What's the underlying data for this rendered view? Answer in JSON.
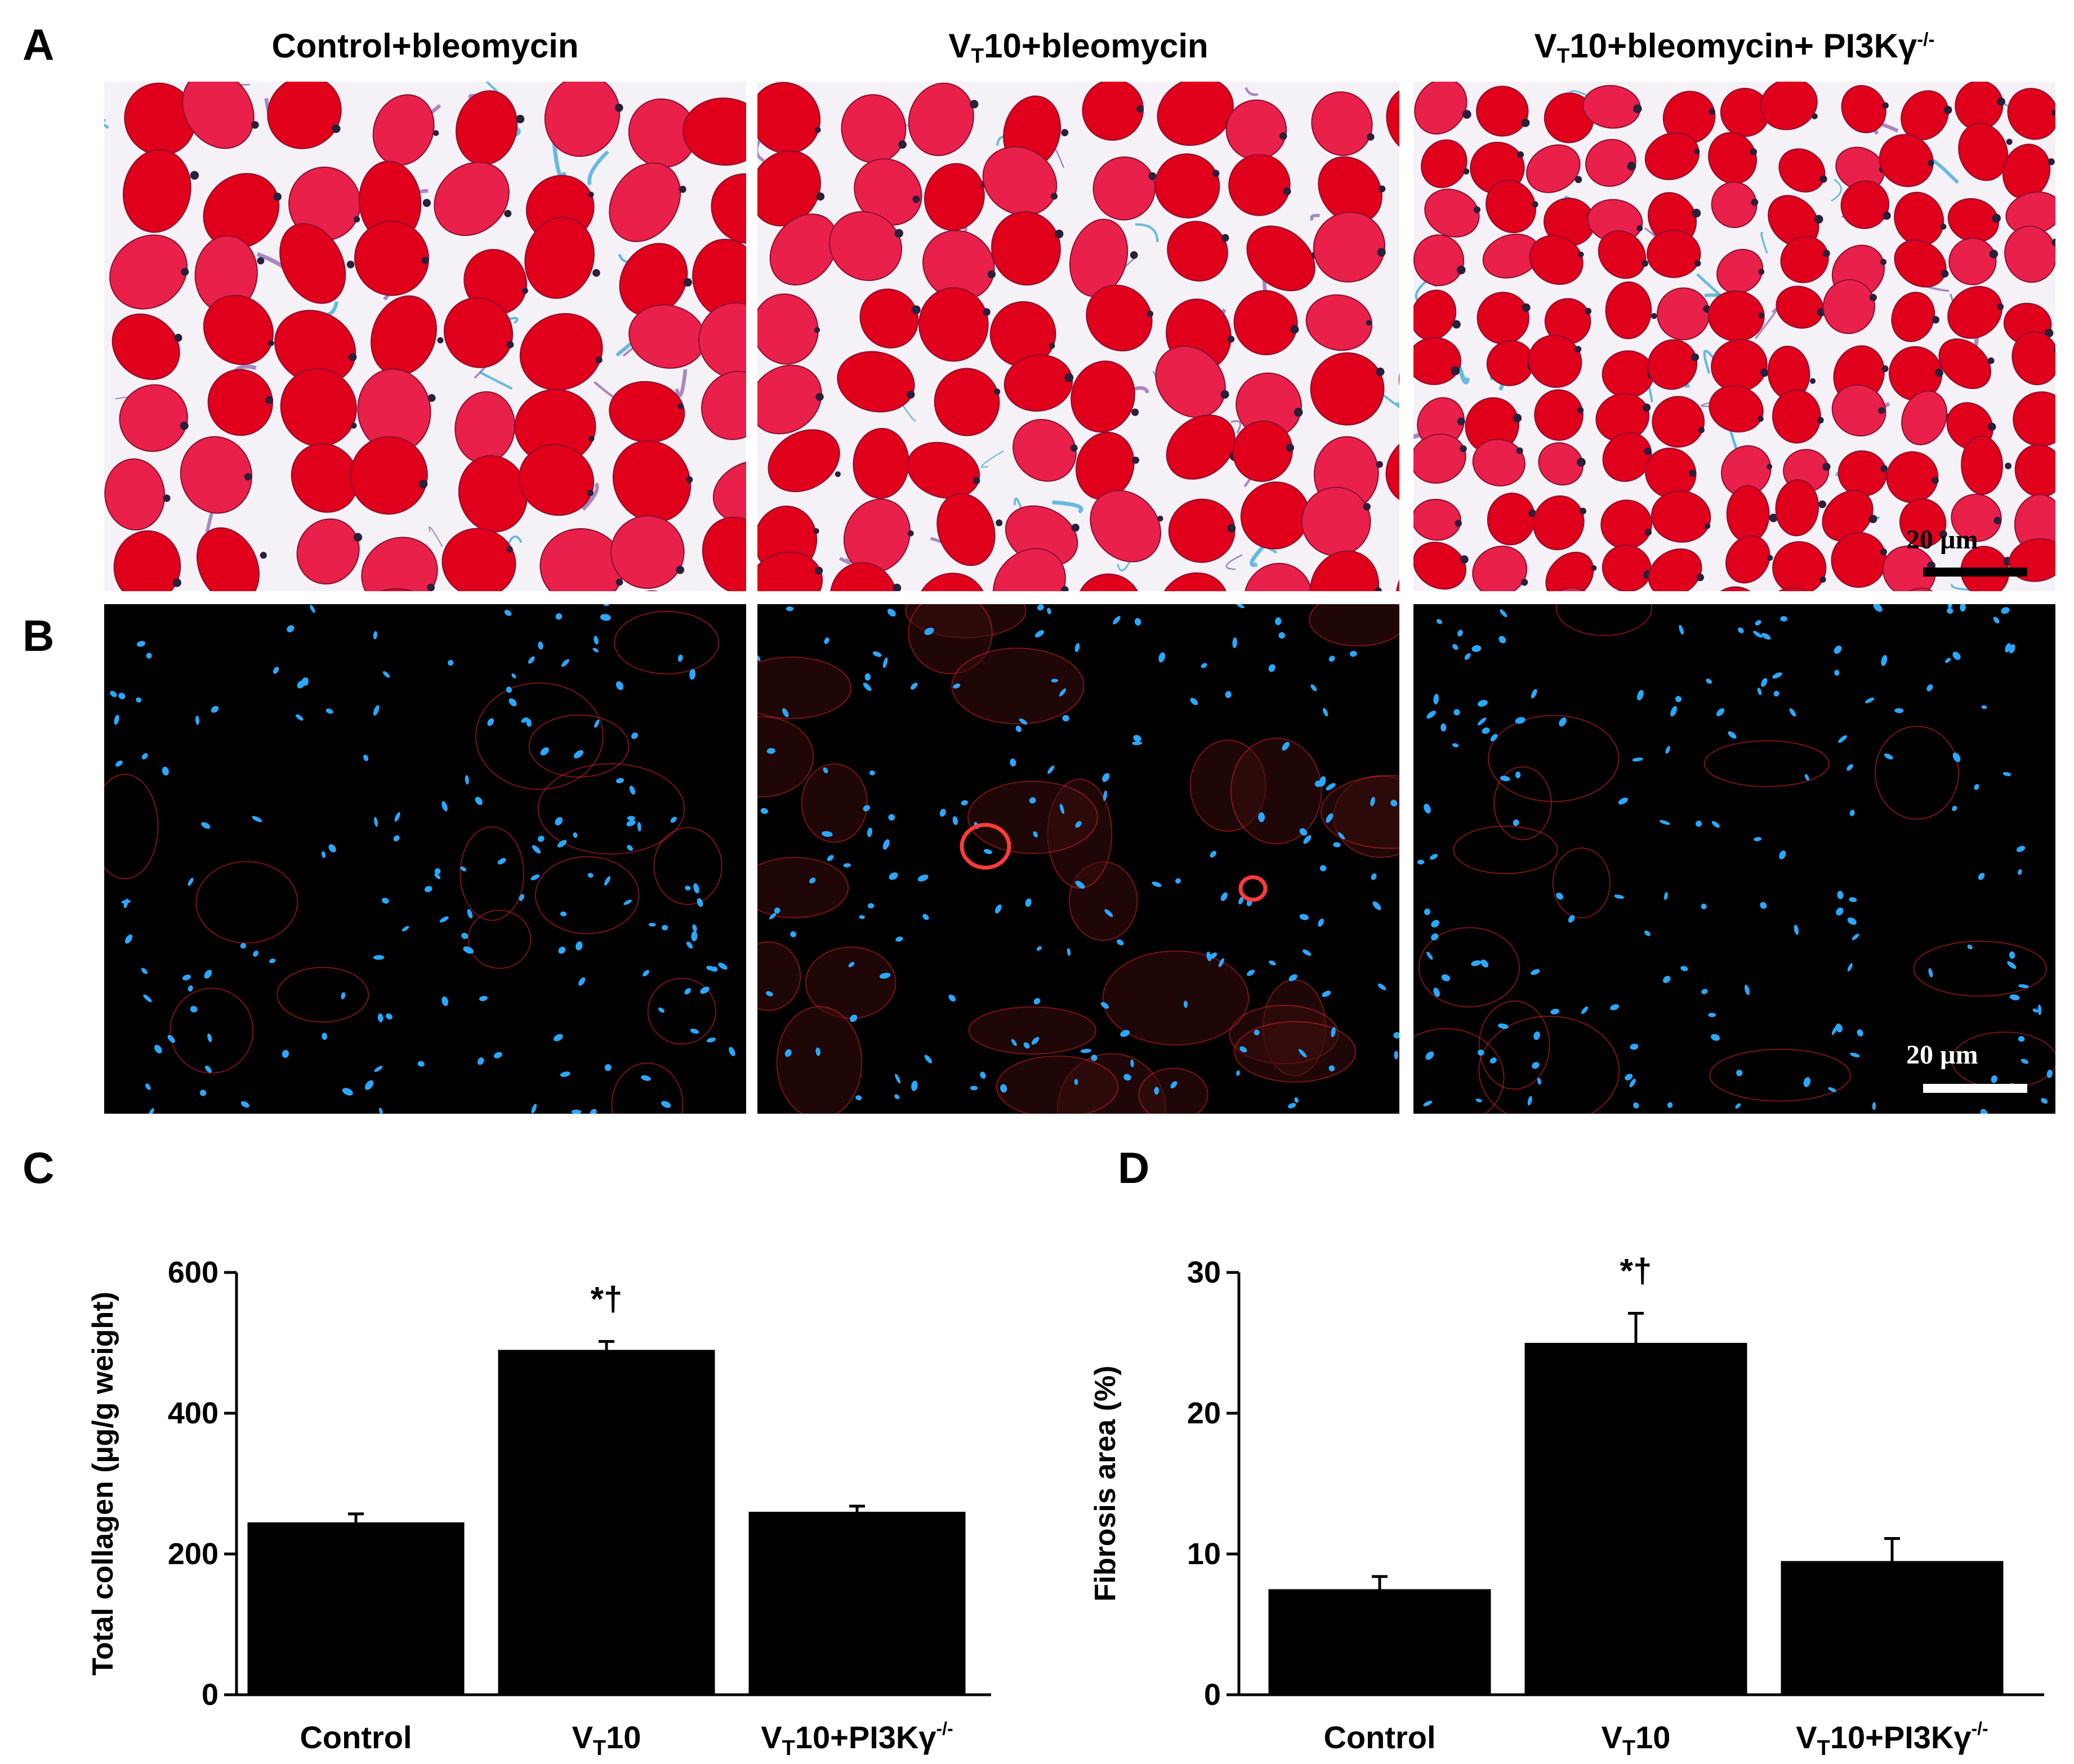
{
  "panels": {
    "A": "A",
    "B": "B",
    "C": "C",
    "D": "D"
  },
  "columns": [
    {
      "base": "Control+bleomycin",
      "sub": "",
      "rest": "",
      "sup": ""
    },
    {
      "base": "V",
      "sub": "T",
      "rest": "10+bleomycin",
      "sup": ""
    },
    {
      "base": "V",
      "sub": "T",
      "rest": "10+bleomycin+ PI3Kγ",
      "sup": "-/-"
    }
  ],
  "scale_bars": {
    "A": "20 µm",
    "B": "20 µm"
  },
  "colors": {
    "trichrome_muscle": "#e0001b",
    "trichrome_collagen": "#2aa3d6",
    "fluor_background": "#000000",
    "fluor_nuclei": "#2aa8ff",
    "fluor_stain": "#e0222a",
    "bars": "#000000"
  },
  "chart_data": [
    {
      "type": "bar",
      "panel": "C",
      "ylabel": "Total collagen (µg/g weight)",
      "ylim": [
        0,
        600
      ],
      "yticks": [
        "0",
        "200",
        "400",
        "600"
      ],
      "categories": [
        {
          "base": "Control",
          "sub": "",
          "rest": "",
          "sup": ""
        },
        {
          "base": "V",
          "sub": "T",
          "rest": "10",
          "sup": ""
        },
        {
          "base": "V",
          "sub": "T",
          "rest": "10+PI3Kγ",
          "sup": "-/-"
        }
      ],
      "values": [
        245,
        490,
        260
      ],
      "errors": [
        12,
        12,
        8
      ],
      "annotations": [
        "",
        "*†",
        ""
      ]
    },
    {
      "type": "bar",
      "panel": "D",
      "ylabel": "Fibrosis area (%)",
      "ylim": [
        0,
        30
      ],
      "yticks": [
        "0",
        "10",
        "20",
        "30"
      ],
      "categories": [
        {
          "base": "Control",
          "sub": "",
          "rest": "",
          "sup": ""
        },
        {
          "base": "V",
          "sub": "T",
          "rest": "10",
          "sup": ""
        },
        {
          "base": "V",
          "sub": "T",
          "rest": "10+PI3Kγ",
          "sup": "-/-"
        }
      ],
      "values": [
        7.5,
        25,
        9.5
      ],
      "errors": [
        0.9,
        2.1,
        1.6
      ],
      "annotations": [
        "",
        "*†",
        ""
      ]
    }
  ]
}
